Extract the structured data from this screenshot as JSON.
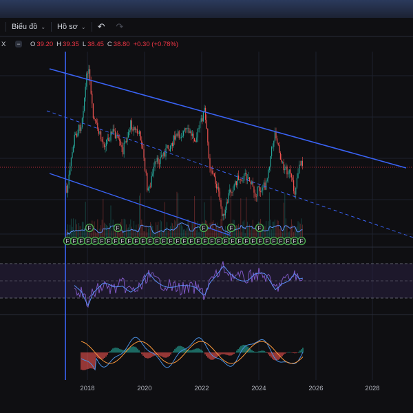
{
  "toolbar": {
    "chart_label": "Biểu đồ",
    "profile_label": "Hồ sơ"
  },
  "legend": {
    "symbol_fragment": "X",
    "open_label": "O",
    "open_value": "39.20",
    "high_label": "H",
    "high_value": "39.35",
    "low_label": "L",
    "low_value": "38.45",
    "close_label": "C",
    "close_value": "38.80",
    "change": "+0.30 (+0.78%)",
    "down_color": "#f23645"
  },
  "time_axis": {
    "labels": [
      "2018",
      "2020",
      "2022",
      "2024",
      "2026",
      "2028"
    ]
  },
  "event_marker_letter": "F",
  "colors": {
    "trendline": "#3a63f5",
    "bull": "#26a69a",
    "bear": "#ef5350",
    "rsi": "#7e57c2"
  }
}
